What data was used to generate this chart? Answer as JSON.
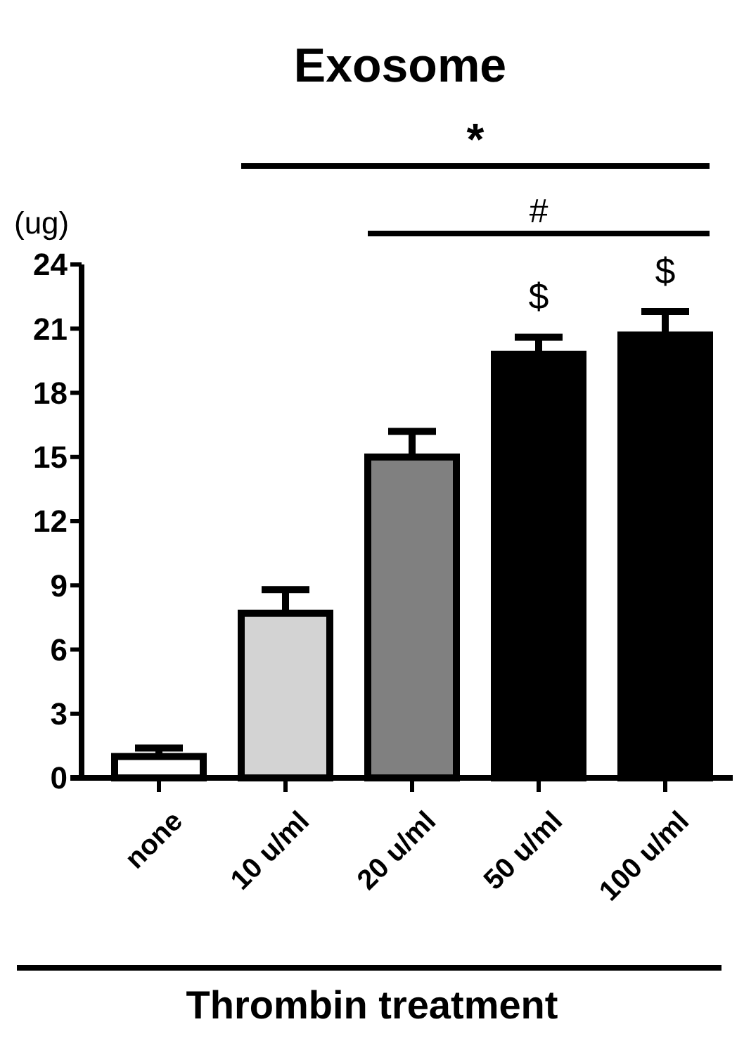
{
  "chart_data": {
    "type": "bar",
    "title": "Exosome",
    "ylabel": "(ug)",
    "xlabel": "Thrombin treatment",
    "categories": [
      "none",
      "10 u/ml",
      "20 u/ml",
      "50 u/ml",
      "100 u/ml"
    ],
    "values": [
      1.0,
      7.7,
      15.0,
      19.8,
      20.7
    ],
    "colors": [
      "#ffffff",
      "#d3d3d3",
      "#808080",
      "#000000",
      "#000000"
    ],
    "errors": [
      0.4,
      1.1,
      1.2,
      0.8,
      1.1
    ],
    "ylim": [
      0,
      24
    ],
    "yticks": [
      0,
      3,
      6,
      9,
      12,
      15,
      18,
      21,
      24
    ],
    "annotations": [
      "*",
      "#",
      "$",
      "$"
    ]
  }
}
